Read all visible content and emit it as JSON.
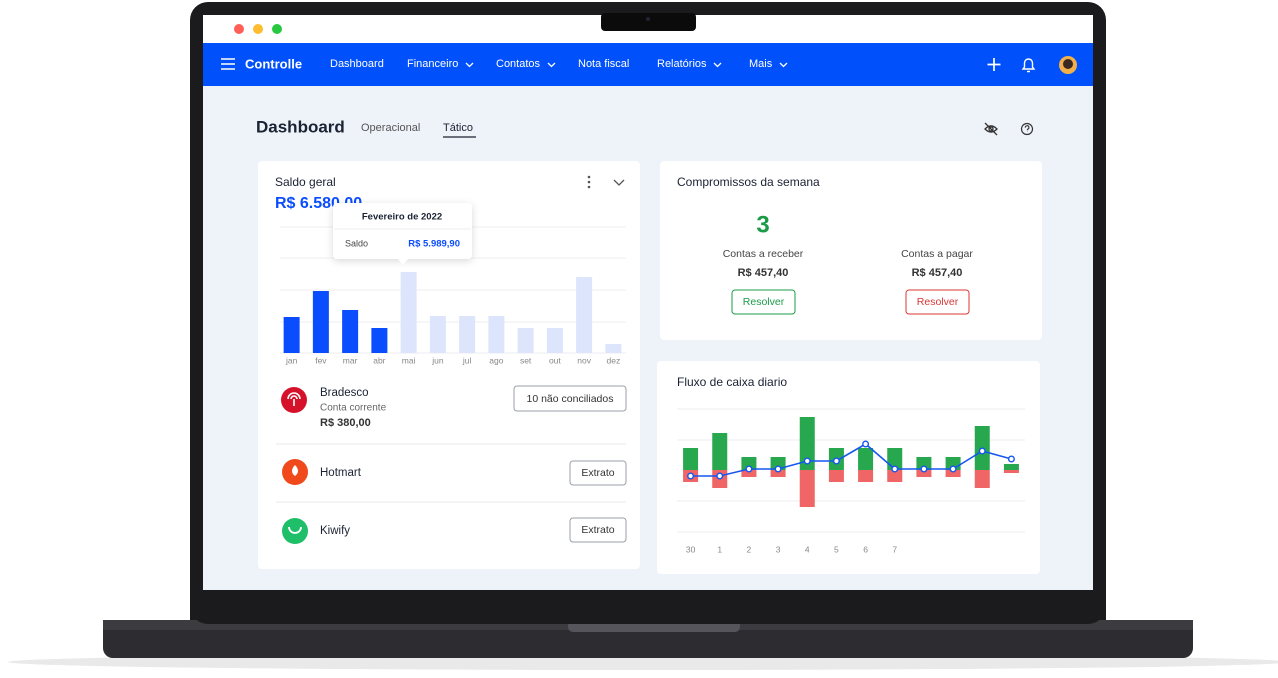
{
  "nav": {
    "brand": "Controlle",
    "items": [
      "Dashboard",
      "Financeiro",
      "Contatos",
      "Nota fiscal",
      "Relatórios",
      "Mais"
    ]
  },
  "header": {
    "title": "Dashboard",
    "tabs": [
      "Operacional",
      "Tático"
    ]
  },
  "accounts": [
    {
      "name": "Bradesco",
      "subtitle": "Conta corrente",
      "amount": "R$ 380,00",
      "button": "10 não conciliados"
    },
    {
      "name": "Hotmart",
      "button": "Extrato"
    },
    {
      "name": "Kiwify",
      "button": "Extrato"
    }
  ],
  "commitments": {
    "title": "Compromissos da semana",
    "count": 3,
    "receivable": {
      "label": "Contas a receber",
      "amount": "R$ 457,40",
      "button": "Resolver"
    },
    "payable": {
      "label": "Contas a pagar",
      "amount": "R$ 457,40",
      "button": "Resolver"
    }
  },
  "chart_data": [
    {
      "type": "bar",
      "title": "Saldo geral",
      "subtitle": "R$ 6.580,00",
      "categories": [
        "jan",
        "fev",
        "mar",
        "abr",
        "mai",
        "jun",
        "jul",
        "ago",
        "set",
        "out",
        "nov",
        "dez"
      ],
      "values": [
        36,
        62,
        43,
        25,
        81,
        37,
        37,
        37,
        25,
        25,
        76,
        9
      ],
      "colors": [
        "#0a4dff",
        "#0a4dff",
        "#0a4dff",
        "#0a4dff",
        "#dce5fb",
        "#dce5fb",
        "#dce5fb",
        "#dce5fb",
        "#dce5fb",
        "#dce5fb",
        "#dce5fb",
        "#dce5fb"
      ],
      "ylim": [
        0,
        100
      ],
      "annotation": {
        "title": "Fevereiro de 2022",
        "label": "Saldo",
        "value": "R$ 5.989,90"
      }
    },
    {
      "type": "bar",
      "title": "Fluxo de caixa diario",
      "categories": [
        "30",
        "1",
        "2",
        "3",
        "4",
        "5",
        "6",
        "7",
        null,
        null,
        null,
        null
      ],
      "series": [
        {
          "color": "#27a84f",
          "values": [
            22,
            37,
            13,
            13,
            53,
            22,
            22,
            22,
            13,
            13,
            44,
            6
          ]
        },
        {
          "color": "#f06565",
          "values": [
            -12,
            -18,
            -7,
            -7,
            -37,
            -12,
            -12,
            -12,
            -7,
            -7,
            -18,
            -3
          ]
        },
        {
          "type": "line",
          "color": "#1656f0",
          "values": [
            -6,
            -6,
            1,
            1,
            9,
            9,
            26,
            1,
            1,
            1,
            19,
            11
          ]
        }
      ],
      "ylim": [
        -60,
        60
      ]
    }
  ]
}
